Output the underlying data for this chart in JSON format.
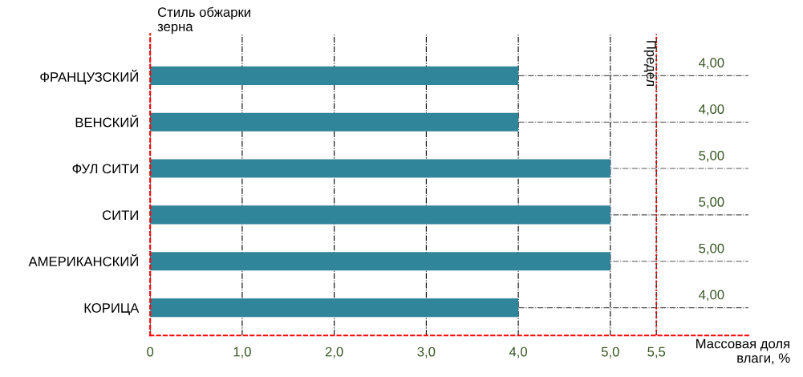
{
  "chart_data": {
    "type": "bar",
    "orientation": "horizontal",
    "categories": [
      "ФРАНЦУЗСКИЙ",
      "ВЕНСКИЙ",
      "ФУЛ СИТИ",
      "СИТИ",
      "АМЕРИКАНСКИЙ",
      "КОРИЦА"
    ],
    "values": [
      4,
      4,
      5,
      5,
      5,
      4
    ],
    "value_labels": [
      "4,00",
      "4,00",
      "5,00",
      "5,00",
      "5,00",
      "4,00"
    ],
    "color": "#31859b",
    "xlabel": "Массовая доля\nвлаги, %",
    "ylabel": "Стиль обжарки\nзерна",
    "xlim": [
      0,
      6.5
    ],
    "xticks": [
      0,
      {
        "value": 1,
        "label": "1,0"
      },
      {
        "value": 2,
        "label": "2,0"
      },
      {
        "value": 3,
        "label": "3,0"
      },
      {
        "value": 4,
        "label": "4,0"
      },
      {
        "value": 5,
        "label": "5,0"
      },
      {
        "value": 5.5,
        "label": "5,5"
      }
    ],
    "ref_lines": [
      {
        "axis": "x",
        "value": 5.5,
        "label": "Предел",
        "color": "#ff0000",
        "line_style": "dotted"
      }
    ],
    "grid": true
  }
}
